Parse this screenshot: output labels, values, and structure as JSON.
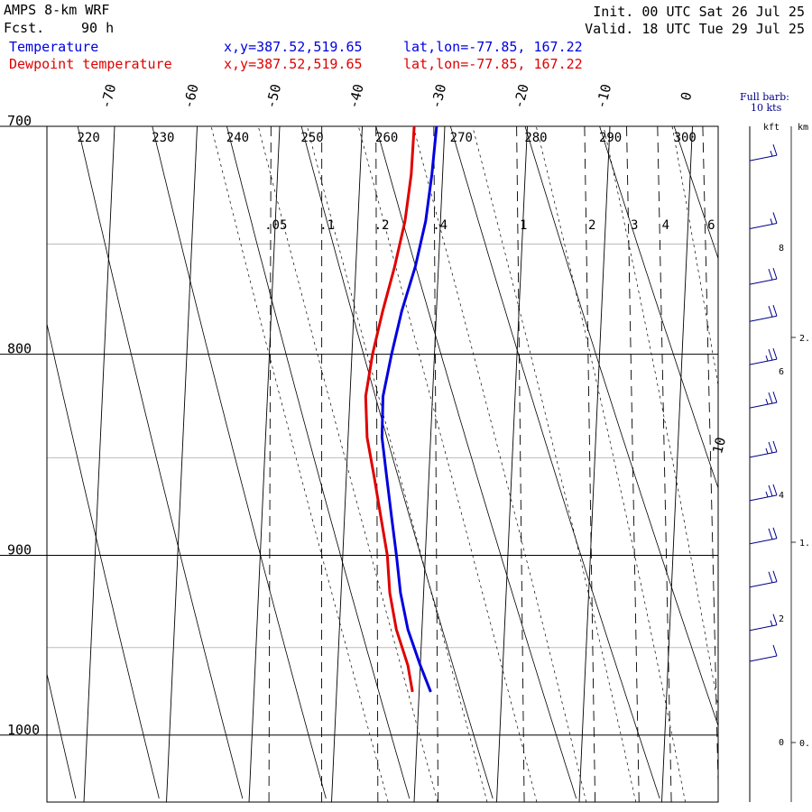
{
  "header": {
    "model": "AMPS 8-km WRF",
    "fcst_label": "Fcst.",
    "fcst_hours": "90 h",
    "init": "Init. 00 UTC Sat 26 Jul 25",
    "valid": "Valid. 18 UTC Tue 29 Jul 25",
    "temp_label": "Temperature",
    "dew_label": "Dewpoint temperature",
    "xy": "x,y=387.52,519.65",
    "latlon": "lat,lon=-77.85, 167.22"
  },
  "barb_legend": {
    "line1": "Full barb:",
    "line2": "10 kts"
  },
  "colors": {
    "temperature": "#0000e0",
    "dewpoint": "#e00000",
    "grid": "#000000",
    "guide": "#bbbbbb"
  },
  "chart_data": {
    "type": "line",
    "title": "",
    "pressure_axis": {
      "ticks": [
        700,
        800,
        900,
        1000
      ],
      "range_hPa": [
        1040,
        700
      ],
      "scale": "log"
    },
    "isotherm_labels": [
      "-70",
      "-60",
      "-50",
      "-40",
      "-30",
      "-20",
      "-10",
      "0",
      "10"
    ],
    "dry_adiabat_labels": [
      "220",
      "230",
      "240",
      "250",
      "260",
      "270",
      "280",
      "290",
      "300"
    ],
    "mixing_ratio_labels": [
      ".05",
      ".1",
      ".2",
      ".4",
      "1",
      "2",
      "3",
      "4",
      "6"
    ],
    "height_axis": {
      "kft_label": "kft",
      "km_label": "km",
      "kft_ticks": [
        "8",
        "6",
        "4",
        "2",
        "0"
      ],
      "km_ticks": [
        "2.",
        "1.",
        "0."
      ]
    },
    "series": [
      {
        "name": "Temperature",
        "color": "#0000e0",
        "points": [
          {
            "p": 700,
            "t": -31.0
          },
          {
            "p": 720,
            "t": -31.3
          },
          {
            "p": 740,
            "t": -31.8
          },
          {
            "p": 760,
            "t": -32.8
          },
          {
            "p": 780,
            "t": -34.2
          },
          {
            "p": 800,
            "t": -35.2
          },
          {
            "p": 820,
            "t": -36.0
          },
          {
            "p": 840,
            "t": -35.9
          },
          {
            "p": 860,
            "t": -35.1
          },
          {
            "p": 880,
            "t": -34.3
          },
          {
            "p": 900,
            "t": -33.5
          },
          {
            "p": 920,
            "t": -32.8
          },
          {
            "p": 940,
            "t": -31.7
          },
          {
            "p": 960,
            "t": -30.0
          },
          {
            "p": 975,
            "t": -28.6
          }
        ]
      },
      {
        "name": "Dewpoint temperature",
        "color": "#e00000",
        "points": [
          {
            "p": 700,
            "t": -33.7
          },
          {
            "p": 720,
            "t": -33.8
          },
          {
            "p": 740,
            "t": -34.3
          },
          {
            "p": 760,
            "t": -35.3
          },
          {
            "p": 780,
            "t": -36.5
          },
          {
            "p": 800,
            "t": -37.5
          },
          {
            "p": 820,
            "t": -38.1
          },
          {
            "p": 840,
            "t": -37.7
          },
          {
            "p": 860,
            "t": -36.6
          },
          {
            "p": 880,
            "t": -35.6
          },
          {
            "p": 900,
            "t": -34.6
          },
          {
            "p": 920,
            "t": -34.1
          },
          {
            "p": 940,
            "t": -33.1
          },
          {
            "p": 960,
            "t": -31.5
          },
          {
            "p": 975,
            "t": -30.8
          }
        ]
      }
    ],
    "winds": [
      {
        "kft": 9.4,
        "barbs": 1,
        "half": 1
      },
      {
        "kft": 8.3,
        "barbs": 1,
        "half": 1
      },
      {
        "kft": 7.4,
        "barbs": 2,
        "half": 0
      },
      {
        "kft": 6.8,
        "barbs": 2,
        "half": 0
      },
      {
        "kft": 6.1,
        "barbs": 2,
        "half": 1
      },
      {
        "kft": 5.4,
        "barbs": 2,
        "half": 1
      },
      {
        "kft": 4.6,
        "barbs": 2,
        "half": 1
      },
      {
        "kft": 3.9,
        "barbs": 2,
        "half": 1
      },
      {
        "kft": 3.2,
        "barbs": 2,
        "half": 0
      },
      {
        "kft": 2.5,
        "barbs": 2,
        "half": 0
      },
      {
        "kft": 1.8,
        "barbs": 1,
        "half": 1
      },
      {
        "kft": 1.3,
        "barbs": 1,
        "half": 0
      }
    ]
  }
}
